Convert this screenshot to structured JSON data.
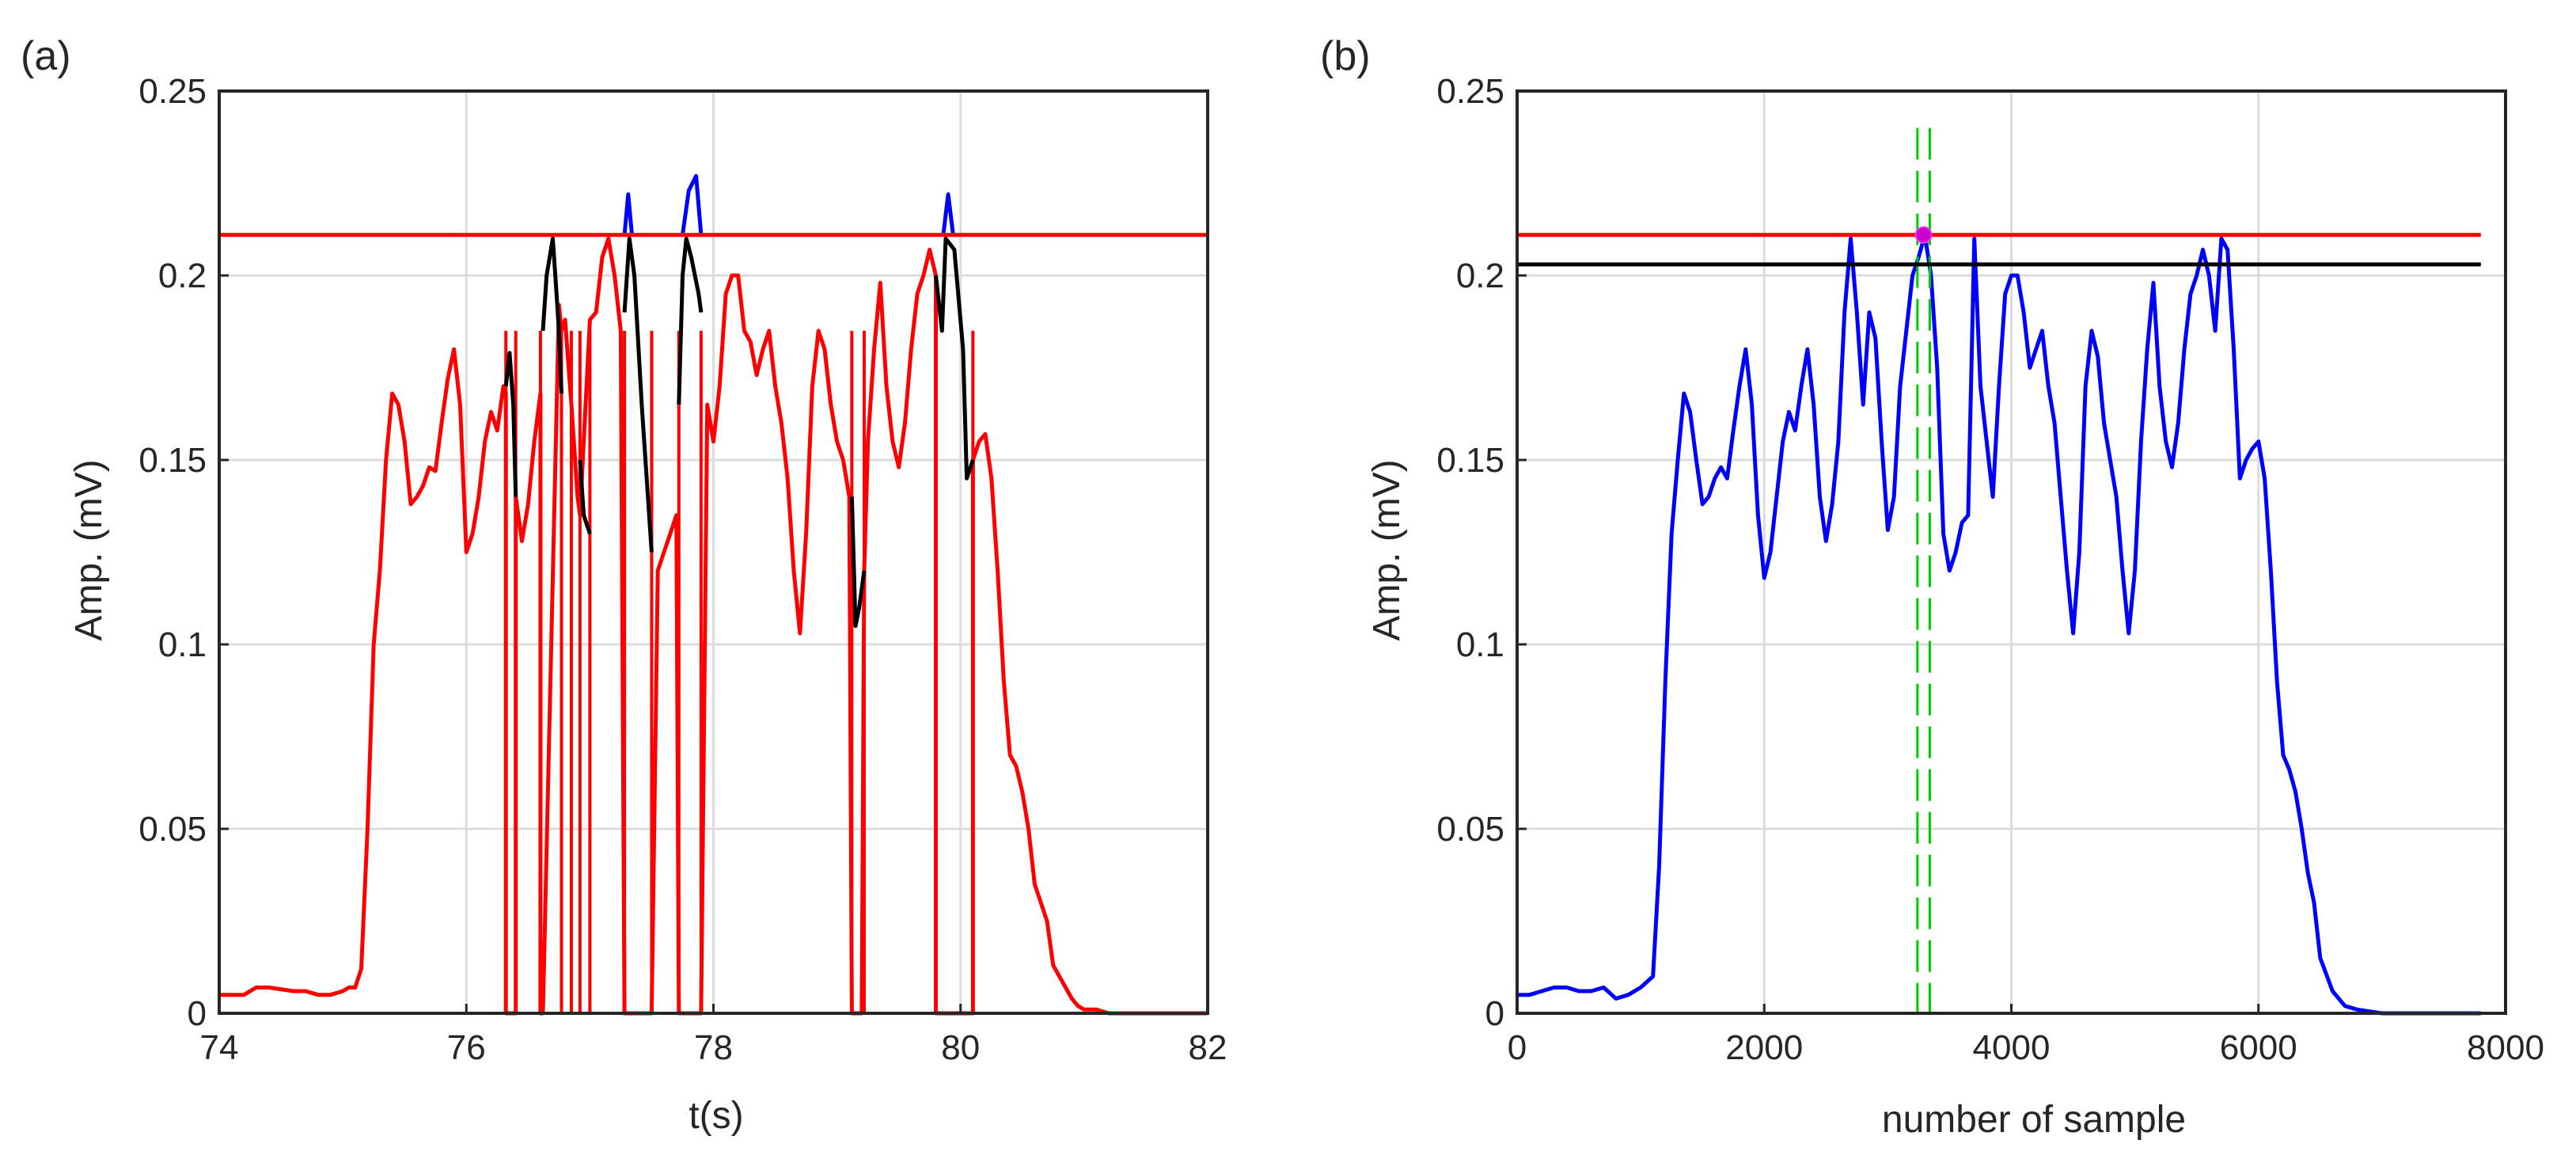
{
  "chart_data": [
    {
      "panel": "(a)",
      "type": "line",
      "xlabel": "t(s)",
      "ylabel": "Amp. (mV)",
      "xlim": [
        74,
        82
      ],
      "ylim": [
        0,
        0.25
      ],
      "xticks": [
        "74",
        "76",
        "78",
        "80",
        "82"
      ],
      "yticks": [
        "0",
        "0.05",
        "0.1",
        "0.15",
        "0.2",
        "0.25"
      ],
      "grid": true,
      "threshold": {
        "y": 0.211,
        "color": "#ff0000"
      },
      "series": [
        {
          "name": "signal-red",
          "color": "#ff0000",
          "x": [
            74.0,
            74.2,
            74.3,
            74.4,
            74.6,
            74.7,
            74.8,
            74.9,
            75.0,
            75.05,
            75.1,
            75.15,
            75.2,
            75.25,
            75.3,
            75.35,
            75.4,
            75.45,
            75.5,
            75.55,
            75.6,
            75.65,
            75.7,
            75.75,
            75.8,
            75.85,
            75.9,
            75.95,
            76.0,
            76.05,
            76.1,
            76.15,
            76.2,
            76.25,
            76.3,
            76.32,
            76.32,
            76.4,
            76.4,
            76.45,
            76.5,
            76.55,
            76.6,
            76.6,
            76.62,
            76.75,
            76.77,
            76.8,
            76.85,
            76.9,
            76.92,
            76.95,
            77.0,
            77.05,
            77.1,
            77.15,
            77.2,
            77.25,
            77.28,
            77.5,
            77.55,
            77.6,
            77.65,
            77.7,
            77.72,
            77.9,
            77.95,
            78.0,
            78.05,
            78.1,
            78.15,
            78.2,
            78.25,
            78.3,
            78.35,
            78.4,
            78.45,
            78.5,
            78.55,
            78.6,
            78.65,
            78.7,
            78.75,
            78.8,
            78.85,
            78.9,
            78.95,
            79.0,
            79.05,
            79.1,
            79.12,
            79.2,
            79.22,
            79.25,
            79.3,
            79.35,
            79.4,
            79.45,
            79.5,
            79.55,
            79.6,
            79.65,
            79.7,
            79.75,
            79.8,
            79.8,
            80.1,
            80.1,
            80.15,
            80.2,
            80.25,
            80.3,
            80.35,
            80.4,
            80.45,
            80.5,
            80.55,
            80.6,
            80.65,
            80.7,
            80.75,
            80.8,
            80.85,
            80.9,
            80.95,
            81.0,
            81.1,
            81.2,
            81.3,
            81.5,
            81.7,
            82.0
          ],
          "y": [
            0.005,
            0.005,
            0.007,
            0.007,
            0.006,
            0.006,
            0.005,
            0.005,
            0.006,
            0.007,
            0.007,
            0.012,
            0.05,
            0.1,
            0.12,
            0.15,
            0.168,
            0.165,
            0.155,
            0.138,
            0.14,
            0.143,
            0.148,
            0.147,
            0.16,
            0.172,
            0.18,
            0.165,
            0.125,
            0.13,
            0.14,
            0.155,
            0.163,
            0.158,
            0.17,
            0.168,
            0.0,
            0.0,
            0.14,
            0.128,
            0.138,
            0.155,
            0.168,
            0.0,
            0.0,
            0.192,
            0.185,
            0.188,
            0.165,
            0.14,
            0.135,
            0.155,
            0.188,
            0.19,
            0.205,
            0.21,
            0.2,
            0.185,
            0.0,
            0.0,
            0.12,
            0.125,
            0.13,
            0.135,
            0.0,
            0.0,
            0.165,
            0.155,
            0.17,
            0.195,
            0.2,
            0.2,
            0.185,
            0.182,
            0.173,
            0.18,
            0.185,
            0.17,
            0.16,
            0.145,
            0.12,
            0.103,
            0.13,
            0.17,
            0.185,
            0.18,
            0.165,
            0.155,
            0.15,
            0.14,
            0.0,
            0.0,
            0.12,
            0.155,
            0.18,
            0.198,
            0.17,
            0.155,
            0.148,
            0.16,
            0.18,
            0.195,
            0.2,
            0.207,
            0.2,
            0.0,
            0.0,
            0.15,
            0.155,
            0.157,
            0.145,
            0.12,
            0.09,
            0.07,
            0.067,
            0.06,
            0.05,
            0.035,
            0.03,
            0.025,
            0.013,
            0.01,
            0.007,
            0.004,
            0.002,
            0.001,
            0.001,
            0.0,
            0.0,
            0.0,
            0.0,
            0.0
          ]
        },
        {
          "name": "signal-black-1",
          "color": "#000000",
          "x": [
            76.32,
            76.35,
            76.38,
            76.4
          ],
          "y": [
            0.17,
            0.179,
            0.165,
            0.14
          ]
        },
        {
          "name": "signal-black-2",
          "color": "#000000",
          "x": [
            76.62,
            76.65,
            76.7,
            76.72,
            76.75,
            76.77
          ],
          "y": [
            0.185,
            0.2,
            0.21,
            0.2,
            0.185,
            0.168
          ]
        },
        {
          "name": "signal-black-3",
          "color": "#000000",
          "x": [
            76.92,
            76.95,
            77.0
          ],
          "y": [
            0.15,
            0.135,
            0.13
          ]
        },
        {
          "name": "signal-black-4",
          "color": "#000000",
          "x": [
            77.28,
            77.32,
            77.36,
            77.42,
            77.5
          ],
          "y": [
            0.19,
            0.21,
            0.2,
            0.165,
            0.125
          ]
        },
        {
          "name": "signal-black-5",
          "color": "#000000",
          "x": [
            77.72,
            77.75,
            77.78,
            77.82,
            77.88,
            77.9
          ],
          "y": [
            0.165,
            0.2,
            0.21,
            0.205,
            0.195,
            0.19
          ]
        },
        {
          "name": "signal-black-6",
          "color": "#000000",
          "x": [
            79.12,
            79.15,
            79.18,
            79.22
          ],
          "y": [
            0.14,
            0.105,
            0.11,
            0.12
          ]
        },
        {
          "name": "signal-black-7",
          "color": "#000000",
          "x": [
            79.8,
            79.85,
            79.88,
            79.95,
            80.02,
            80.05,
            80.1
          ],
          "y": [
            0.2,
            0.185,
            0.21,
            0.207,
            0.18,
            0.145,
            0.15
          ]
        },
        {
          "name": "peak-blue-1",
          "color": "#0000ff",
          "x": [
            77.28,
            77.31,
            77.34
          ],
          "y": [
            0.211,
            0.222,
            0.211
          ]
        },
        {
          "name": "peak-blue-2",
          "color": "#0000ff",
          "x": [
            77.75,
            77.8,
            77.86,
            77.9
          ],
          "y": [
            0.211,
            0.223,
            0.227,
            0.211
          ]
        },
        {
          "name": "peak-blue-3",
          "color": "#0000ff",
          "x": [
            79.86,
            79.9,
            79.94
          ],
          "y": [
            0.211,
            0.222,
            0.211
          ]
        }
      ],
      "vlines": {
        "color": "#ff0000",
        "x": [
          76.32,
          76.4,
          76.6,
          76.77,
          76.85,
          76.92,
          77.0,
          77.28,
          77.5,
          77.72,
          77.9,
          79.12,
          79.22,
          79.8,
          80.1
        ]
      }
    },
    {
      "panel": "(b)",
      "type": "line",
      "xlabel": "number of sample",
      "ylabel": "Amp. (mV)",
      "xlim": [
        0,
        8000
      ],
      "ylim": [
        0,
        0.25
      ],
      "xticks": [
        "0",
        "2000",
        "4000",
        "6000",
        "8000"
      ],
      "yticks": [
        "0",
        "0.05",
        "0.1",
        "0.15",
        "0.2",
        "0.25"
      ],
      "grid": true,
      "hlines": [
        {
          "name": "upper-threshold-line",
          "y": 0.211,
          "x_end": 7800,
          "color": "#ff0000"
        },
        {
          "name": "lower-threshold-line",
          "y": 0.203,
          "x_end": 7800,
          "color": "#000000"
        }
      ],
      "vlines_dashed": {
        "x": [
          3240,
          3340
        ],
        "color": "#00cc00"
      },
      "marker": {
        "x": 3290,
        "y": 0.211,
        "color": "#cc00cc"
      },
      "series": [
        {
          "name": "signal-blue",
          "color": "#0000ff",
          "x": [
            0,
            100,
            200,
            300,
            400,
            500,
            600,
            700,
            800,
            900,
            1000,
            1100,
            1150,
            1200,
            1250,
            1300,
            1350,
            1400,
            1450,
            1500,
            1550,
            1600,
            1650,
            1700,
            1750,
            1800,
            1850,
            1900,
            1950,
            2000,
            2050,
            2100,
            2150,
            2200,
            2250,
            2300,
            2350,
            2400,
            2450,
            2500,
            2550,
            2600,
            2650,
            2700,
            2750,
            2800,
            2850,
            2900,
            2950,
            3000,
            3050,
            3100,
            3150,
            3200,
            3250,
            3300,
            3350,
            3400,
            3450,
            3500,
            3550,
            3600,
            3650,
            3700,
            3750,
            3800,
            3850,
            3900,
            3950,
            4000,
            4050,
            4100,
            4150,
            4200,
            4250,
            4300,
            4350,
            4400,
            4450,
            4500,
            4550,
            4600,
            4650,
            4700,
            4750,
            4800,
            4850,
            4900,
            4950,
            5000,
            5050,
            5100,
            5150,
            5200,
            5250,
            5300,
            5350,
            5400,
            5450,
            5500,
            5550,
            5600,
            5650,
            5700,
            5750,
            5800,
            5850,
            5900,
            5950,
            6000,
            6050,
            6100,
            6150,
            6200,
            6250,
            6300,
            6350,
            6400,
            6450,
            6500,
            6600,
            6700,
            6800,
            7000,
            7200,
            7500,
            7800
          ],
          "y": [
            0.005,
            0.005,
            0.006,
            0.007,
            0.007,
            0.006,
            0.006,
            0.007,
            0.004,
            0.005,
            0.007,
            0.01,
            0.04,
            0.09,
            0.13,
            0.15,
            0.168,
            0.163,
            0.15,
            0.138,
            0.14,
            0.145,
            0.148,
            0.145,
            0.158,
            0.17,
            0.18,
            0.165,
            0.135,
            0.118,
            0.125,
            0.14,
            0.155,
            0.163,
            0.158,
            0.17,
            0.18,
            0.165,
            0.14,
            0.128,
            0.138,
            0.155,
            0.19,
            0.21,
            0.19,
            0.165,
            0.19,
            0.183,
            0.155,
            0.131,
            0.14,
            0.17,
            0.185,
            0.2,
            0.205,
            0.211,
            0.2,
            0.175,
            0.13,
            0.12,
            0.125,
            0.133,
            0.135,
            0.21,
            0.17,
            0.155,
            0.14,
            0.17,
            0.195,
            0.2,
            0.2,
            0.19,
            0.175,
            0.18,
            0.185,
            0.17,
            0.16,
            0.14,
            0.12,
            0.103,
            0.125,
            0.17,
            0.185,
            0.178,
            0.16,
            0.15,
            0.14,
            0.12,
            0.103,
            0.12,
            0.155,
            0.18,
            0.198,
            0.17,
            0.155,
            0.148,
            0.16,
            0.18,
            0.195,
            0.2,
            0.207,
            0.2,
            0.185,
            0.21,
            0.207,
            0.18,
            0.145,
            0.15,
            0.153,
            0.155,
            0.145,
            0.12,
            0.09,
            0.07,
            0.066,
            0.06,
            0.05,
            0.038,
            0.03,
            0.015,
            0.006,
            0.002,
            0.001,
            0.0,
            0.0,
            0.0,
            0.0
          ]
        }
      ]
    }
  ]
}
